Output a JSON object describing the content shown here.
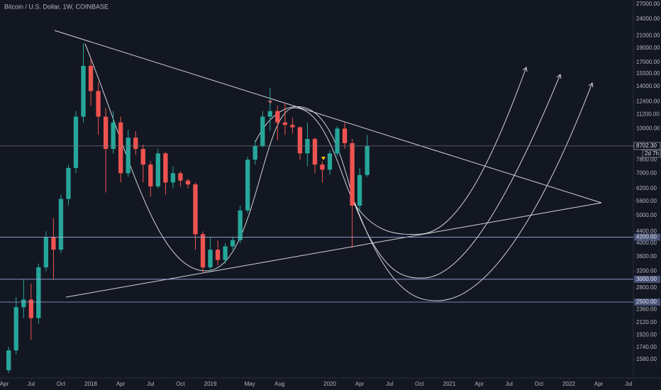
{
  "header": {
    "title": "Bitcoin / U.S. Dollar, 1W, COINBASE"
  },
  "chart_data": {
    "type": "candlestick",
    "log_scale": true,
    "up_color": "#26a69a",
    "down_color": "#ef5350",
    "x": [
      2017.3125,
      2017.375,
      2017.4375,
      2017.5,
      2017.5625,
      2017.625,
      2017.6875,
      2017.75,
      2017.8125,
      2017.875,
      2017.9375,
      2018.0,
      2018.0625,
      2018.125,
      2018.1875,
      2018.25,
      2018.3125,
      2018.375,
      2018.4375,
      2018.5,
      2018.5625,
      2018.625,
      2018.6875,
      2018.75,
      2018.8125,
      2018.875,
      2018.9375,
      2019.0,
      2019.0625,
      2019.125,
      2019.1875,
      2019.25,
      2019.3125,
      2019.375,
      2019.4375,
      2019.5,
      2019.5625,
      2019.625,
      2019.6875,
      2019.75,
      2019.8125,
      2019.875,
      2019.9375,
      2020.0,
      2020.0625,
      2020.125,
      2020.1875,
      2020.25,
      2020.3125
    ],
    "open": [
      1450,
      1700,
      2400,
      2550,
      2200,
      3300,
      4200,
      3800,
      5700,
      7300,
      11000,
      16500,
      13500,
      11000,
      8500,
      10500,
      7000,
      9300,
      8500,
      7500,
      6300,
      8200,
      6500,
      7000,
      6600,
      6400,
      4300,
      3300,
      3800,
      3500,
      3900,
      4100,
      5200,
      7800,
      8700,
      11000,
      11500,
      10500,
      10300,
      10100,
      8200,
      9200,
      7500,
      7200,
      8200,
      10000,
      8900,
      5400,
      6900
    ],
    "high": [
      1750,
      2600,
      3000,
      2900,
      3400,
      4400,
      4900,
      5900,
      7500,
      11500,
      19800,
      17500,
      14500,
      11800,
      11500,
      11000,
      9900,
      9800,
      8800,
      7700,
      8500,
      8300,
      7400,
      7100,
      6700,
      6500,
      4400,
      4200,
      4100,
      4000,
      4200,
      5400,
      8000,
      9100,
      11500,
      13800,
      12000,
      12300,
      10900,
      10200,
      10500,
      9300,
      7700,
      8400,
      10200,
      10500,
      9200,
      7300,
      9500
    ],
    "low": [
      1420,
      1650,
      2200,
      1850,
      2100,
      3200,
      3000,
      3700,
      5400,
      7000,
      10500,
      12000,
      9500,
      6000,
      8200,
      6500,
      6800,
      8100,
      6500,
      5800,
      6200,
      5900,
      6200,
      6300,
      6200,
      3800,
      3150,
      3200,
      3350,
      3400,
      3800,
      4000,
      5100,
      7500,
      8600,
      9800,
      9100,
      9500,
      9600,
      7800,
      7400,
      7000,
      6500,
      6900,
      8000,
      8500,
      3850,
      5200,
      6800
    ],
    "close": [
      1700,
      2400,
      2550,
      2200,
      3300,
      4200,
      3800,
      5700,
      7300,
      11000,
      16500,
      13500,
      11000,
      8500,
      10500,
      7000,
      9300,
      8500,
      7500,
      6300,
      8200,
      6500,
      7000,
      6600,
      6400,
      4300,
      3300,
      3800,
      3500,
      3900,
      4100,
      5200,
      7800,
      8700,
      11000,
      11500,
      10500,
      10300,
      10100,
      8200,
      9200,
      7500,
      7200,
      8200,
      10000,
      8900,
      5400,
      6900,
      8702.3
    ],
    "xlim": [
      2017.24,
      2022.54
    ],
    "ylim": [
      1427,
      27930
    ],
    "xticks": [
      {
        "value": 2017.25,
        "label": "Apr"
      },
      {
        "value": 2017.5,
        "label": "Jul"
      },
      {
        "value": 2017.75,
        "label": "Oct"
      },
      2018,
      {
        "value": 2018.25,
        "label": "Apr"
      },
      {
        "value": 2018.5,
        "label": "Jul"
      },
      {
        "value": 2018.75,
        "label": "Oct"
      },
      2019,
      {
        "value": 2019.33,
        "label": "May"
      },
      {
        "value": 2019.58,
        "label": "Aug"
      },
      2020,
      {
        "value": 2020.25,
        "label": "Apr"
      },
      {
        "value": 2020.5,
        "label": "Jul"
      },
      {
        "value": 2020.75,
        "label": "Oct"
      },
      2021,
      {
        "value": 2021.25,
        "label": "Apr"
      },
      {
        "value": 2021.5,
        "label": "Jul"
      },
      {
        "value": 2021.75,
        "label": "Oct"
      },
      2022,
      {
        "value": 2022.25,
        "label": "Apr"
      },
      {
        "value": 2022.5,
        "label": "Jul"
      }
    ],
    "yticks": [
      {
        "value": 27000,
        "label": "27000.00"
      },
      {
        "value": 24000,
        "label": "24000.00"
      },
      {
        "value": 21000,
        "label": "21000.00"
      },
      {
        "value": 19000,
        "label": "19000.00"
      },
      {
        "value": 17000,
        "label": "17000.00"
      },
      {
        "value": 15500,
        "label": "15500.00"
      },
      {
        "value": 14000,
        "label": "14000.00"
      },
      {
        "value": 12400,
        "label": "12400.00"
      },
      {
        "value": 11200,
        "label": "11200.00"
      },
      {
        "value": 10000,
        "label": "10000.00"
      },
      {
        "value": 7800,
        "label": "7800.00"
      },
      {
        "value": 7000,
        "label": "7000.00"
      },
      {
        "value": 6200,
        "label": "6200.00"
      },
      {
        "value": 5600,
        "label": "5600.00"
      },
      {
        "value": 5000,
        "label": "5000.00"
      },
      {
        "value": 4400,
        "label": "4400.00"
      },
      {
        "value": 4000,
        "label": "4000.00"
      },
      {
        "value": 3600,
        "label": "3600.00"
      },
      {
        "value": 3200,
        "label": "3200.00"
      },
      {
        "value": 2800,
        "label": "2800.00"
      },
      {
        "value": 2360,
        "label": "2360.00"
      },
      {
        "value": 2120,
        "label": "2120.00"
      },
      {
        "value": 1920,
        "label": "1920.00"
      },
      {
        "value": 1740,
        "label": "1740.00"
      },
      {
        "value": 1580,
        "label": "1580.00"
      }
    ],
    "levels": [
      {
        "value": 8702.3,
        "label": "8702.30"
      },
      {
        "value": 4200,
        "label": "4200.00"
      },
      {
        "value": 3000,
        "label": "3000.00"
      },
      {
        "value": 2500,
        "label": "2500.00"
      }
    ],
    "countdown": "2d 7h"
  }
}
